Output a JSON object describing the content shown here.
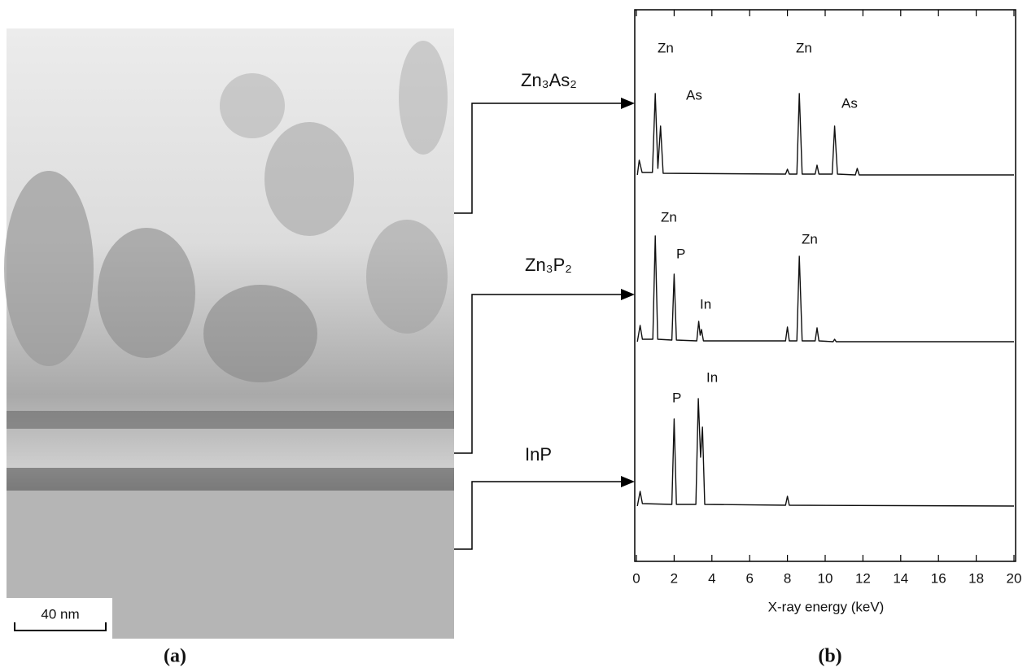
{
  "image": {
    "scale_bar": "40 nm",
    "label": "(a)"
  },
  "chart_data": {
    "type": "line",
    "panel_label": "(b)",
    "xlabel": "X-ray energy (keV)",
    "xlim": [
      0,
      20
    ],
    "xticks": [
      0,
      2,
      4,
      6,
      8,
      10,
      12,
      14,
      16,
      18,
      20
    ],
    "series": [
      {
        "name": "Zn₃As₂",
        "color": "#111111",
        "ylim": [
          0,
          130
        ],
        "x": [
          0.05,
          0.15,
          0.3,
          0.85,
          1.0,
          1.14,
          1.28,
          1.42,
          7.9,
          8.0,
          8.1,
          8.5,
          8.63,
          8.78,
          9.47,
          9.57,
          9.67,
          10.37,
          10.5,
          10.65,
          11.6,
          11.7,
          11.8,
          20
        ],
        "values": [
          0,
          18,
          3,
          3,
          100,
          8,
          60,
          2,
          1,
          7,
          1,
          1,
          100,
          1,
          1,
          12,
          1,
          1,
          60,
          1,
          0,
          8,
          0,
          0
        ],
        "annotations": [
          "Zn",
          "As",
          "Zn",
          "As"
        ]
      },
      {
        "name": "Zn₃P₂",
        "color": "#111111",
        "ylim": [
          0,
          140
        ],
        "x": [
          0.05,
          0.2,
          0.32,
          0.87,
          1.0,
          1.13,
          1.88,
          2.0,
          2.12,
          3.2,
          3.3,
          3.38,
          3.45,
          3.55,
          7.9,
          8.0,
          8.1,
          8.5,
          8.63,
          8.78,
          9.47,
          9.57,
          9.67,
          10.42,
          10.5,
          10.58,
          20
        ],
        "values": [
          0,
          20,
          3,
          3,
          130,
          3,
          2,
          83,
          2,
          1,
          25,
          8,
          15,
          1,
          1,
          18,
          1,
          1,
          105,
          1,
          1,
          17,
          1,
          0,
          3,
          0,
          0
        ],
        "annotations": [
          "Zn",
          "P",
          "In",
          "Zn"
        ]
      },
      {
        "name": "InP",
        "color": "#111111",
        "ylim": [
          0,
          140
        ],
        "x": [
          0.05,
          0.2,
          0.32,
          1.88,
          2.0,
          2.12,
          3.15,
          3.28,
          3.4,
          3.5,
          3.62,
          7.9,
          8.0,
          8.1,
          20
        ],
        "values": [
          0,
          18,
          3,
          2,
          107,
          2,
          2,
          132,
          60,
          97,
          2,
          1,
          12,
          1,
          0
        ],
        "annotations": [
          "P",
          "In"
        ]
      }
    ]
  }
}
